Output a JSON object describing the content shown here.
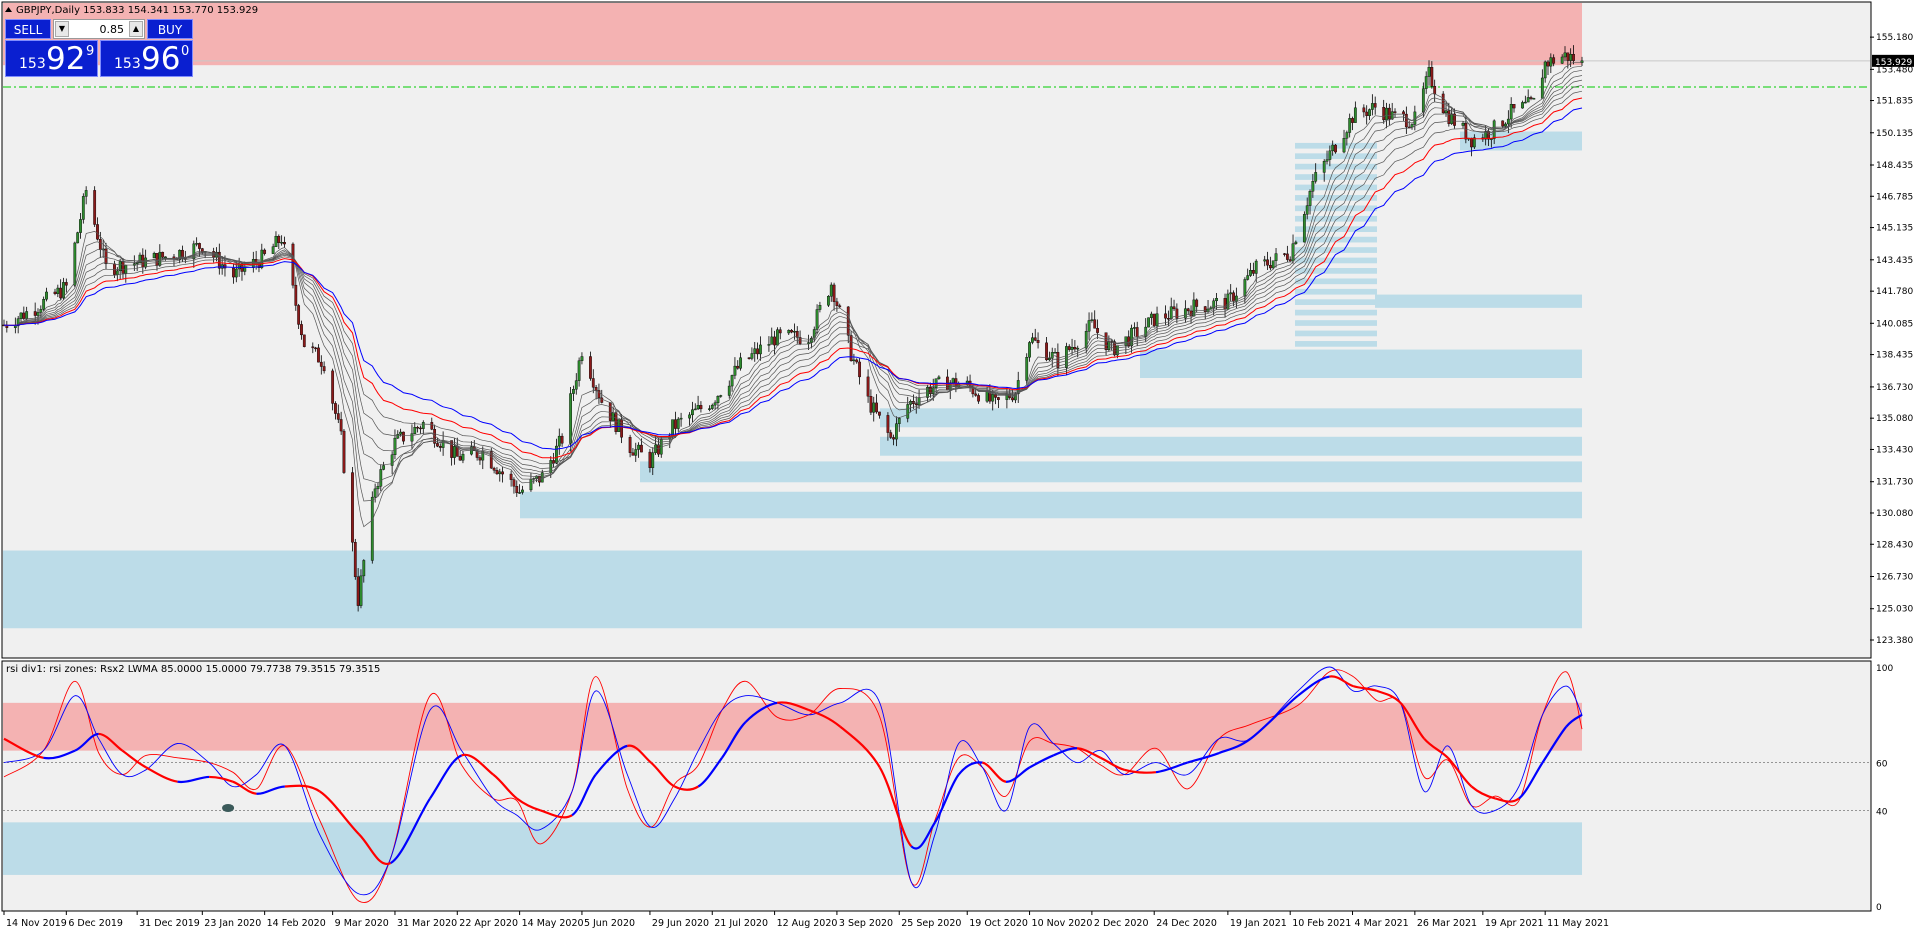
{
  "window": {
    "header_text": "GBPJPY,Daily  153.833 154.341 153.770 153.929",
    "indicator_label": "rsi div1: rsi zones: Rsx2 LWMA 85.0000 15.0000 79.7738 79.3515 79.3515"
  },
  "trade_panel": {
    "sell_label": "SELL",
    "buy_label": "BUY",
    "lot_value": "0.85",
    "sell_price_small": "153",
    "sell_price_big": "92",
    "sell_price_sup": "9",
    "buy_price_small": "153",
    "buy_price_big": "96",
    "buy_price_sup": "0",
    "dec_icon": "triangle-down-icon",
    "inc_icon": "triangle-up-icon"
  },
  "colors": {
    "background": "#f0f0f0",
    "bull_candle": "#2e8b2e",
    "bear_candle": "#8b1a1a",
    "supply_zone": "#f4b2b2",
    "demand_zone": "#bcdce8",
    "ema_red": "#ff0000",
    "ema_blue": "#0000ff",
    "ribbon": "#555555",
    "level_line": "#00cc00",
    "rsi_fast": "#0000ff",
    "rsi_slow": "#ff0000"
  },
  "chart_data": [
    {
      "type": "candlestick",
      "symbol": "GBPJPY",
      "timeframe": "Daily",
      "ohlc_last": {
        "open": 153.833,
        "high": 154.341,
        "low": 153.77,
        "close": 153.929
      },
      "current_price_label": "153.929",
      "ylim": [
        123.38,
        156.4
      ],
      "y_ticks": [
        "155.180",
        "153.480",
        "151.835",
        "150.135",
        "148.435",
        "146.785",
        "145.135",
        "143.435",
        "141.780",
        "140.085",
        "138.435",
        "136.730",
        "135.080",
        "133.430",
        "131.730",
        "130.080",
        "128.430",
        "126.730",
        "125.030",
        "123.380"
      ],
      "x_ticks": [
        "14 Nov 2019",
        "6 Dec 2019",
        "31 Dec 2019",
        "23 Jan 2020",
        "14 Feb 2020",
        "9 Mar 2020",
        "31 Mar 2020",
        "22 Apr 2020",
        "14 May 2020",
        "5 Jun 2020",
        "29 Jun 2020",
        "21 Jul 2020",
        "12 Aug 2020",
        "3 Sep 2020",
        "25 Sep 2020",
        "19 Oct 2020",
        "10 Nov 2020",
        "2 Dec 2020",
        "24 Dec 2020",
        "19 Jan 2021",
        "10 Feb 2021",
        "4 Mar 2021",
        "26 Mar 2021",
        "19 Apr 2021",
        "11 May 2021"
      ],
      "x_range": [
        "2019-11-14",
        "2021-05-24"
      ],
      "key_points": [
        [
          "2019-11-14",
          140.0
        ],
        [
          "2019-11-25",
          140.9
        ],
        [
          "2019-12-06",
          142.0
        ],
        [
          "2019-12-13",
          147.1
        ],
        [
          "2019-12-20",
          143.0
        ],
        [
          "2019-12-31",
          143.3
        ],
        [
          "2020-01-10",
          143.6
        ],
        [
          "2020-01-23",
          144.2
        ],
        [
          "2020-02-03",
          142.6
        ],
        [
          "2020-02-14",
          143.6
        ],
        [
          "2020-02-20",
          144.6
        ],
        [
          "2020-02-28",
          139.0
        ],
        [
          "2020-03-06",
          138.0
        ],
        [
          "2020-03-12",
          134.0
        ],
        [
          "2020-03-18",
          125.5
        ],
        [
          "2020-03-24",
          131.5
        ],
        [
          "2020-03-31",
          133.8
        ],
        [
          "2020-04-10",
          134.8
        ],
        [
          "2020-04-22",
          133.0
        ],
        [
          "2020-05-01",
          133.3
        ],
        [
          "2020-05-14",
          131.2
        ],
        [
          "2020-05-22",
          132.0
        ],
        [
          "2020-05-29",
          134.0
        ],
        [
          "2020-06-05",
          138.7
        ],
        [
          "2020-06-12",
          136.0
        ],
        [
          "2020-06-22",
          133.6
        ],
        [
          "2020-06-29",
          132.8
        ],
        [
          "2020-07-07",
          134.6
        ],
        [
          "2020-07-21",
          136.0
        ],
        [
          "2020-07-31",
          137.9
        ],
        [
          "2020-08-12",
          139.3
        ],
        [
          "2020-08-24",
          139.4
        ],
        [
          "2020-09-01",
          142.2
        ],
        [
          "2020-09-08",
          138.5
        ],
        [
          "2020-09-14",
          136.0
        ],
        [
          "2020-09-22",
          134.0
        ],
        [
          "2020-09-28",
          135.8
        ],
        [
          "2020-10-05",
          136.6
        ],
        [
          "2020-10-12",
          137.0
        ],
        [
          "2020-10-19",
          136.8
        ],
        [
          "2020-10-29",
          135.8
        ],
        [
          "2020-11-05",
          136.5
        ],
        [
          "2020-11-10",
          139.3
        ],
        [
          "2020-11-20",
          138.1
        ],
        [
          "2020-12-02",
          140.0
        ],
        [
          "2020-12-09",
          138.7
        ],
        [
          "2020-12-18",
          139.6
        ],
        [
          "2020-12-24",
          140.3
        ],
        [
          "2021-01-08",
          141.0
        ],
        [
          "2021-01-19",
          141.2
        ],
        [
          "2021-01-29",
          143.0
        ],
        [
          "2021-02-10",
          143.8
        ],
        [
          "2021-02-18",
          147.5
        ],
        [
          "2021-02-24",
          149.0
        ],
        [
          "2021-03-04",
          151.0
        ],
        [
          "2021-03-12",
          151.5
        ],
        [
          "2021-03-18",
          151.0
        ],
        [
          "2021-03-26",
          150.8
        ],
        [
          "2021-03-31",
          153.2
        ],
        [
          "2021-04-06",
          151.2
        ],
        [
          "2021-04-15",
          149.8
        ],
        [
          "2021-04-22",
          150.2
        ],
        [
          "2021-04-29",
          151.2
        ],
        [
          "2021-05-07",
          151.7
        ],
        [
          "2021-05-11",
          153.8
        ],
        [
          "2021-05-18",
          154.2
        ],
        [
          "2021-05-24",
          153.93
        ]
      ],
      "supply_zone": [
        153.7,
        156.4
      ],
      "demand_zones": [
        [
          124.0,
          128.1
        ],
        [
          129.8,
          131.2
        ],
        [
          131.7,
          132.8
        ],
        [
          133.1,
          134.1
        ],
        [
          134.6,
          135.6
        ],
        [
          137.2,
          138.7
        ],
        [
          140.9,
          141.6
        ],
        [
          149.2,
          150.2
        ]
      ],
      "demand_ladder": [
        137.2,
        149.7
      ],
      "horizontal_level": 152.55,
      "lines": [
        "red moving average",
        "blue moving average",
        "grey ribbon moving averages"
      ]
    },
    {
      "type": "line",
      "name": "rsi div1: rsi zones: Rsx2 LWMA",
      "ylim": [
        0,
        100
      ],
      "y_ticks": [
        "100",
        "60",
        "40",
        "0"
      ],
      "levels": [
        60,
        40
      ],
      "upper_zone": [
        65,
        85
      ],
      "lower_zone": [
        13,
        35
      ],
      "series": [
        {
          "color": "blue",
          "values": [
            [
              0,
              60
            ],
            [
              0.025,
              65
            ],
            [
              0.045,
              88
            ],
            [
              0.06,
              70
            ],
            [
              0.075,
              55
            ],
            [
              0.09,
              57
            ],
            [
              0.11,
              68
            ],
            [
              0.13,
              60
            ],
            [
              0.145,
              50
            ],
            [
              0.16,
              55
            ],
            [
              0.178,
              67
            ],
            [
              0.2,
              30
            ],
            [
              0.225,
              5
            ],
            [
              0.245,
              20
            ],
            [
              0.27,
              82
            ],
            [
              0.29,
              65
            ],
            [
              0.31,
              45
            ],
            [
              0.325,
              38
            ],
            [
              0.34,
              32
            ],
            [
              0.36,
              48
            ],
            [
              0.375,
              90
            ],
            [
              0.395,
              55
            ],
            [
              0.41,
              33
            ],
            [
              0.425,
              45
            ],
            [
              0.44,
              65
            ],
            [
              0.455,
              82
            ],
            [
              0.47,
              88
            ],
            [
              0.49,
              85
            ],
            [
              0.51,
              80
            ],
            [
              0.53,
              85
            ],
            [
              0.555,
              85
            ],
            [
              0.575,
              10
            ],
            [
              0.59,
              30
            ],
            [
              0.605,
              68
            ],
            [
              0.62,
              58
            ],
            [
              0.635,
              40
            ],
            [
              0.65,
              75
            ],
            [
              0.665,
              68
            ],
            [
              0.68,
              60
            ],
            [
              0.695,
              65
            ],
            [
              0.71,
              55
            ],
            [
              0.73,
              60
            ],
            [
              0.75,
              55
            ],
            [
              0.77,
              70
            ],
            [
              0.79,
              70
            ],
            [
              0.82,
              90
            ],
            [
              0.84,
              100
            ],
            [
              0.855,
              90
            ],
            [
              0.87,
              92
            ],
            [
              0.885,
              85
            ],
            [
              0.9,
              48
            ],
            [
              0.915,
              67
            ],
            [
              0.93,
              42
            ],
            [
              0.945,
              40
            ],
            [
              0.96,
              50
            ],
            [
              0.975,
              80
            ],
            [
              0.99,
              92
            ],
            [
              1.0,
              80
            ]
          ]
        },
        {
          "color": "red",
          "values": [
            [
              0,
              70
            ],
            [
              0.025,
              62
            ],
            [
              0.045,
              65
            ],
            [
              0.06,
              72
            ],
            [
              0.075,
              65
            ],
            [
              0.09,
              58
            ],
            [
              0.11,
              52
            ],
            [
              0.13,
              54
            ],
            [
              0.145,
              52
            ],
            [
              0.16,
              47
            ],
            [
              0.178,
              50
            ],
            [
              0.2,
              48
            ],
            [
              0.225,
              30
            ],
            [
              0.245,
              18
            ],
            [
              0.27,
              45
            ],
            [
              0.29,
              63
            ],
            [
              0.31,
              55
            ],
            [
              0.325,
              45
            ],
            [
              0.34,
              40
            ],
            [
              0.36,
              38
            ],
            [
              0.375,
              55
            ],
            [
              0.395,
              67
            ],
            [
              0.41,
              60
            ],
            [
              0.425,
              50
            ],
            [
              0.44,
              50
            ],
            [
              0.455,
              62
            ],
            [
              0.47,
              77
            ],
            [
              0.49,
              85
            ],
            [
              0.51,
              82
            ],
            [
              0.53,
              75
            ],
            [
              0.555,
              58
            ],
            [
              0.575,
              25
            ],
            [
              0.59,
              35
            ],
            [
              0.605,
              55
            ],
            [
              0.62,
              60
            ],
            [
              0.635,
              52
            ],
            [
              0.65,
              58
            ],
            [
              0.665,
              63
            ],
            [
              0.68,
              66
            ],
            [
              0.695,
              62
            ],
            [
              0.71,
              57
            ],
            [
              0.73,
              56
            ],
            [
              0.75,
              60
            ],
            [
              0.77,
              64
            ],
            [
              0.79,
              70
            ],
            [
              0.82,
              88
            ],
            [
              0.84,
              96
            ],
            [
              0.855,
              92
            ],
            [
              0.87,
              90
            ],
            [
              0.885,
              85
            ],
            [
              0.9,
              70
            ],
            [
              0.915,
              62
            ],
            [
              0.93,
              50
            ],
            [
              0.945,
              45
            ],
            [
              0.96,
              45
            ],
            [
              0.975,
              60
            ],
            [
              0.99,
              75
            ],
            [
              1.0,
              80
            ]
          ]
        }
      ]
    }
  ]
}
